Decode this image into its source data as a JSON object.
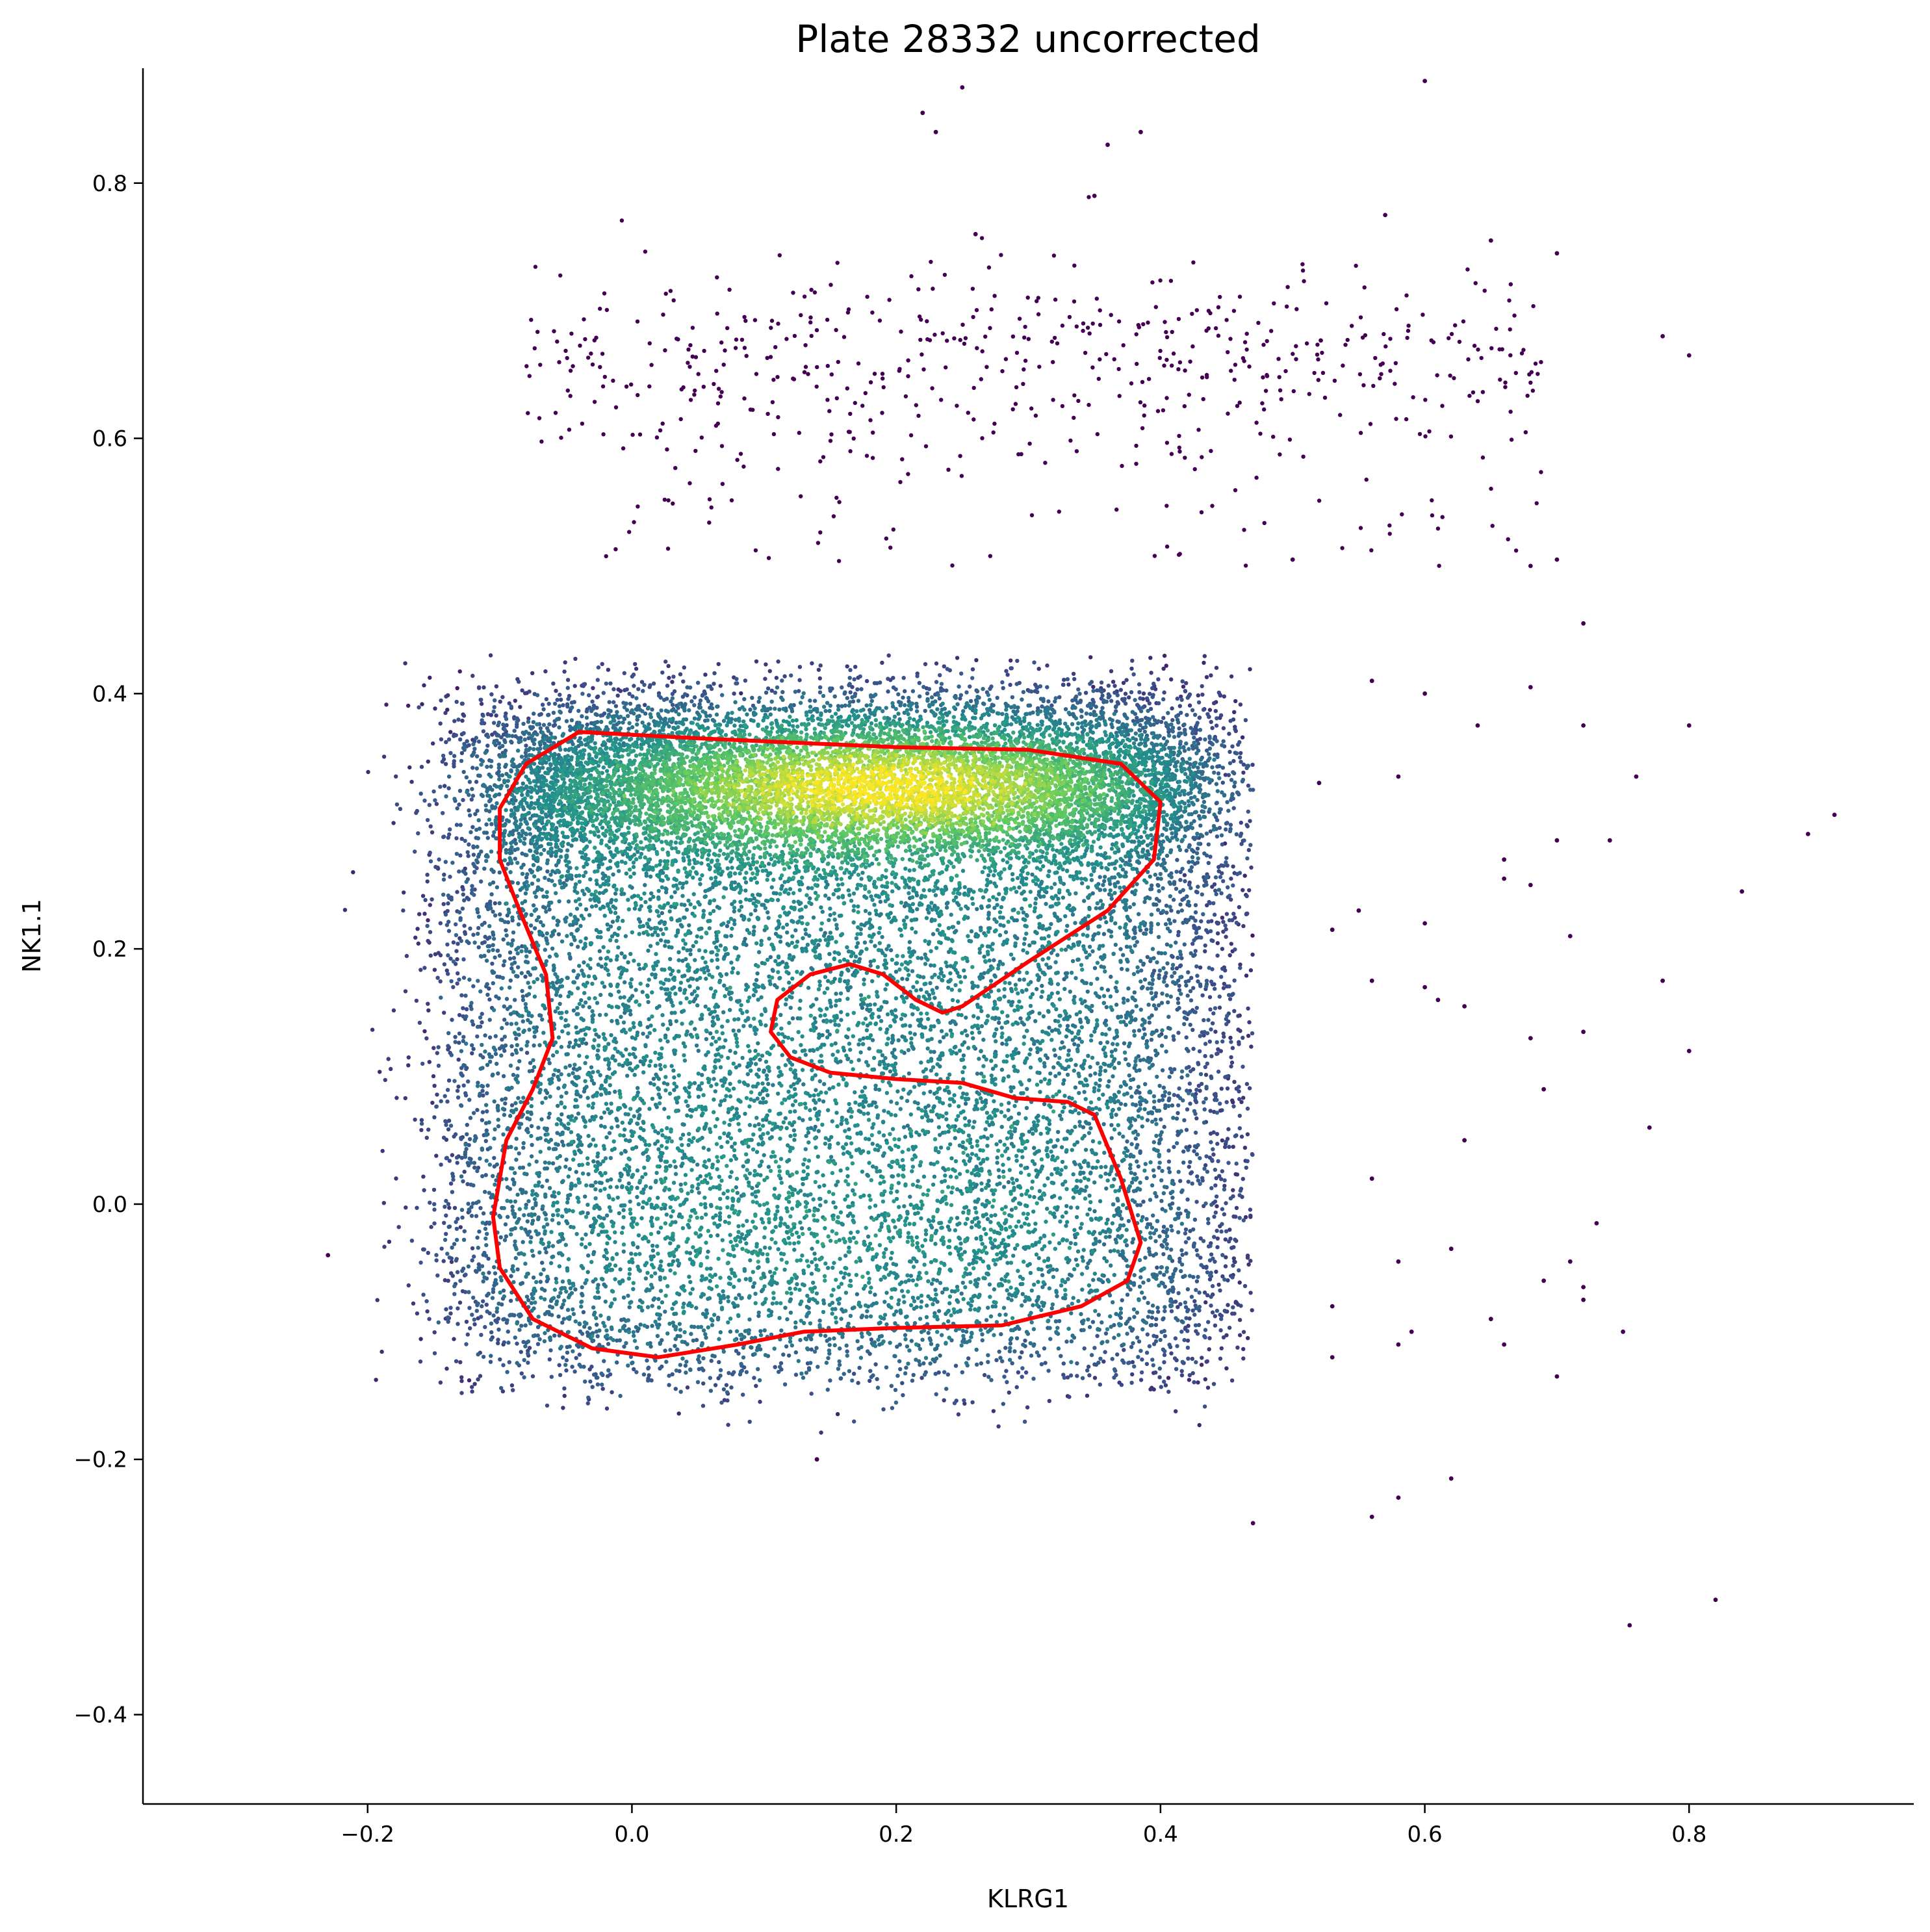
{
  "chart_data": {
    "type": "scatter",
    "title": "Plate 28332 uncorrected",
    "xlabel": "KLRG1",
    "ylabel": "NK1.1",
    "xlim": [
      -0.37,
      0.97
    ],
    "ylim": [
      -0.47,
      0.89
    ],
    "xticks": [
      -0.2,
      0.0,
      0.2,
      0.4,
      0.6,
      0.8
    ],
    "yticks": [
      -0.4,
      -0.2,
      0.0,
      0.2,
      0.4,
      0.6,
      0.8
    ],
    "xtick_labels": [
      "−0.2",
      "0.0",
      "0.2",
      "0.4",
      "0.6",
      "0.8"
    ],
    "ytick_labels": [
      "−0.4",
      "−0.2",
      "0.0",
      "0.2",
      "0.4",
      "0.6",
      "0.8"
    ],
    "colormap": [
      "#440154",
      "#3b528b",
      "#21918c",
      "#5ec962",
      "#fde725"
    ],
    "grid": false,
    "legend": "none",
    "point_color_meaning": "local point density (viridis)",
    "dense_population": {
      "x_range": [
        -0.22,
        0.47
      ],
      "y_range": [
        -0.18,
        0.43
      ],
      "approx_count": 20000,
      "density_peak": [
        0.2,
        0.33
      ]
    },
    "upper_population": {
      "x_range": [
        -0.08,
        0.69
      ],
      "y_range": [
        0.58,
        0.75
      ],
      "approx_count": 600
    },
    "outliers": [
      [
        0.25,
        0.875
      ],
      [
        0.6,
        0.88
      ],
      [
        0.22,
        0.855
      ],
      [
        0.23,
        0.84
      ],
      [
        0.385,
        0.84
      ],
      [
        0.36,
        0.83
      ],
      [
        0.35,
        0.79
      ],
      [
        0.57,
        0.775
      ],
      [
        0.26,
        0.76
      ],
      [
        0.65,
        0.755
      ],
      [
        0.78,
        0.68
      ],
      [
        0.8,
        0.665
      ],
      [
        0.7,
        0.745
      ],
      [
        0.5,
        0.505
      ],
      [
        0.7,
        0.505
      ],
      [
        0.68,
        0.5
      ],
      [
        0.68,
        0.405
      ],
      [
        0.72,
        0.455
      ],
      [
        0.6,
        0.4
      ],
      [
        0.56,
        0.41
      ],
      [
        0.64,
        0.375
      ],
      [
        0.72,
        0.375
      ],
      [
        0.8,
        0.375
      ],
      [
        0.76,
        0.335
      ],
      [
        0.58,
        0.335
      ],
      [
        0.52,
        0.33
      ],
      [
        0.74,
        0.285
      ],
      [
        0.7,
        0.285
      ],
      [
        0.89,
        0.29
      ],
      [
        0.91,
        0.305
      ],
      [
        0.84,
        0.245
      ],
      [
        0.66,
        0.27
      ],
      [
        0.66,
        0.255
      ],
      [
        0.68,
        0.25
      ],
      [
        0.55,
        0.23
      ],
      [
        0.6,
        0.22
      ],
      [
        0.53,
        0.215
      ],
      [
        0.71,
        0.21
      ],
      [
        0.56,
        0.175
      ],
      [
        0.6,
        0.17
      ],
      [
        0.78,
        0.175
      ],
      [
        0.63,
        0.155
      ],
      [
        0.61,
        0.16
      ],
      [
        0.72,
        0.135
      ],
      [
        0.8,
        0.12
      ],
      [
        0.68,
        0.13
      ],
      [
        0.69,
        0.09
      ],
      [
        0.77,
        0.06
      ],
      [
        0.56,
        0.02
      ],
      [
        0.73,
        -0.015
      ],
      [
        0.58,
        -0.045
      ],
      [
        0.62,
        -0.035
      ],
      [
        0.71,
        -0.045
      ],
      [
        0.69,
        -0.06
      ],
      [
        0.72,
        -0.065
      ],
      [
        0.72,
        -0.075
      ],
      [
        0.53,
        -0.08
      ],
      [
        0.65,
        -0.09
      ],
      [
        0.59,
        -0.1
      ],
      [
        0.75,
        -0.1
      ],
      [
        0.58,
        -0.11
      ],
      [
        0.53,
        -0.12
      ],
      [
        0.7,
        -0.135
      ],
      [
        0.47,
        -0.25
      ],
      [
        0.56,
        -0.245
      ],
      [
        0.58,
        -0.23
      ],
      [
        0.62,
        -0.215
      ],
      [
        0.82,
        -0.31
      ],
      [
        0.755,
        -0.33
      ],
      [
        0.14,
        -0.2
      ],
      [
        -0.23,
        -0.04
      ],
      [
        0.63,
        0.05
      ],
      [
        0.66,
        -0.11
      ]
    ],
    "gate_polygon": [
      [
        -0.04,
        0.37
      ],
      [
        0.05,
        0.365
      ],
      [
        0.2,
        0.358
      ],
      [
        0.3,
        0.356
      ],
      [
        0.37,
        0.345
      ],
      [
        0.4,
        0.315
      ],
      [
        0.395,
        0.27
      ],
      [
        0.36,
        0.23
      ],
      [
        0.3,
        0.19
      ],
      [
        0.25,
        0.155
      ],
      [
        0.235,
        0.15
      ],
      [
        0.215,
        0.16
      ],
      [
        0.19,
        0.18
      ],
      [
        0.165,
        0.188
      ],
      [
        0.135,
        0.18
      ],
      [
        0.11,
        0.16
      ],
      [
        0.105,
        0.135
      ],
      [
        0.12,
        0.115
      ],
      [
        0.15,
        0.103
      ],
      [
        0.2,
        0.098
      ],
      [
        0.25,
        0.095
      ],
      [
        0.29,
        0.083
      ],
      [
        0.33,
        0.08
      ],
      [
        0.35,
        0.07
      ],
      [
        0.37,
        0.02
      ],
      [
        0.385,
        -0.03
      ],
      [
        0.375,
        -0.06
      ],
      [
        0.34,
        -0.08
      ],
      [
        0.28,
        -0.095
      ],
      [
        0.2,
        -0.097
      ],
      [
        0.13,
        -0.1
      ],
      [
        0.08,
        -0.11
      ],
      [
        0.02,
        -0.12
      ],
      [
        -0.03,
        -0.113
      ],
      [
        -0.075,
        -0.09
      ],
      [
        -0.1,
        -0.05
      ],
      [
        -0.105,
        -0.01
      ],
      [
        -0.095,
        0.05
      ],
      [
        -0.075,
        0.09
      ],
      [
        -0.06,
        0.13
      ],
      [
        -0.065,
        0.18
      ],
      [
        -0.085,
        0.23
      ],
      [
        -0.1,
        0.27
      ],
      [
        -0.1,
        0.31
      ],
      [
        -0.08,
        0.345
      ]
    ]
  }
}
